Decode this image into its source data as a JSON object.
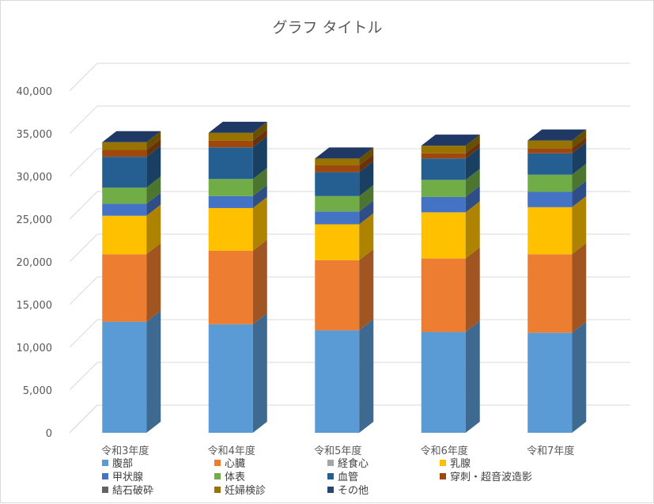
{
  "chart_data": {
    "type": "bar",
    "stacked": true,
    "three_d": true,
    "title": "グラフ タイトル",
    "categories": [
      "令和3年度",
      "令和4年度",
      "令和5年度",
      "令和6年度",
      "令和7年度"
    ],
    "ylim": [
      0,
      40000
    ],
    "yticks": [
      0,
      5000,
      10000,
      15000,
      20000,
      25000,
      30000,
      35000,
      40000
    ],
    "ytick_labels": [
      "0",
      "5,000",
      "10,000",
      "15,000",
      "20,000",
      "25,000",
      "30,000",
      "35,000",
      "40,000"
    ],
    "grid": true,
    "legend_position": "bottom",
    "series": [
      {
        "name": "腹部",
        "color": "#5b9bd5",
        "values": [
          13000,
          12700,
          12000,
          11800,
          11700
        ]
      },
      {
        "name": "心臓",
        "color": "#ed7d31",
        "values": [
          7900,
          8600,
          8200,
          8600,
          9200
        ]
      },
      {
        "name": "経食心",
        "color": "#a5a5a5",
        "values": [
          0,
          0,
          0,
          0,
          0
        ]
      },
      {
        "name": "乳腺",
        "color": "#ffc000",
        "values": [
          4500,
          5000,
          4200,
          5400,
          5500
        ]
      },
      {
        "name": "甲状腺",
        "color": "#4472c4",
        "values": [
          1400,
          1400,
          1500,
          1800,
          1800
        ]
      },
      {
        "name": "体表",
        "color": "#70ad47",
        "values": [
          1900,
          2000,
          1800,
          2000,
          2000
        ]
      },
      {
        "name": "血管",
        "color": "#255e91",
        "values": [
          3600,
          3700,
          2800,
          2500,
          2500
        ]
      },
      {
        "name": "穿刺・超音波造影",
        "color": "#9e480e",
        "values": [
          800,
          800,
          800,
          600,
          600
        ]
      },
      {
        "name": "結石破砕",
        "color": "#636363",
        "values": [
          0,
          0,
          0,
          0,
          0
        ]
      },
      {
        "name": "妊婦検診",
        "color": "#997300",
        "values": [
          900,
          900,
          800,
          900,
          900
        ]
      },
      {
        "name": "その他",
        "color": "#264478",
        "values": [
          0,
          0,
          0,
          0,
          0
        ]
      }
    ]
  }
}
